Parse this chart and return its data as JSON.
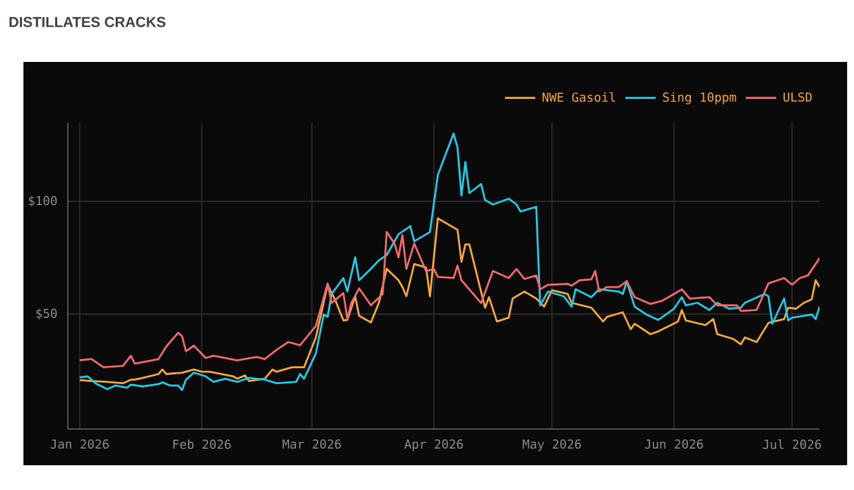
{
  "chart_data": {
    "type": "line",
    "title": "DISTILLATES CRACKS",
    "xlim": [
      "2025-12-29",
      "2026-07-08"
    ],
    "xticks": [
      {
        "value": "2026-01-01",
        "label": "Jan 2026"
      },
      {
        "value": "2026-02-01",
        "label": "Feb 2026"
      },
      {
        "value": "2026-03-01",
        "label": "Mar 2026"
      },
      {
        "value": "2026-04-01",
        "label": "Apr 2026"
      },
      {
        "value": "2026-05-01",
        "label": "May 2026"
      },
      {
        "value": "2026-06-01",
        "label": "Jun 2026"
      },
      {
        "value": "2026-07-01",
        "label": "Jul 2026"
      }
    ],
    "ylim": [
      -1,
      135
    ],
    "yticks": [
      {
        "value": 50,
        "label": "$50"
      },
      {
        "value": 100,
        "label": "$100"
      }
    ],
    "grid": true,
    "legend": "top right",
    "line_style": "solid",
    "series": [
      {
        "name": "NWE Gasoil",
        "color": "#f5a83a",
        "x": [
          "2026-01-01",
          "2026-01-04",
          "2026-01-08",
          "2026-01-12",
          "2026-01-14",
          "2026-01-15",
          "2026-01-17",
          "2026-01-21",
          "2026-01-22",
          "2026-01-23",
          "2026-01-27",
          "2026-01-30",
          "2026-02-01",
          "2026-02-03",
          "2026-02-09",
          "2026-02-10",
          "2026-02-12",
          "2026-02-13",
          "2026-02-17",
          "2026-02-19",
          "2026-02-20",
          "2026-02-24",
          "2026-02-27",
          "2026-03-02",
          "2026-03-05",
          "2026-03-07",
          "2026-03-09",
          "2026-03-10",
          "2026-03-12",
          "2026-03-13",
          "2026-03-16",
          "2026-03-18",
          "2026-03-20",
          "2026-03-23",
          "2026-03-24",
          "2026-03-25",
          "2026-03-27",
          "2026-03-30",
          "2026-03-31",
          "2026-04-02",
          "2026-04-07",
          "2026-04-08",
          "2026-04-09",
          "2026-04-10",
          "2026-04-14",
          "2026-04-15",
          "2026-04-17",
          "2026-04-20",
          "2026-04-21",
          "2026-04-24",
          "2026-04-27",
          "2026-04-29",
          "2026-05-01",
          "2026-05-05",
          "2026-05-06",
          "2026-05-11",
          "2026-05-14",
          "2026-05-15",
          "2026-05-19",
          "2026-05-21",
          "2026-05-22",
          "2026-05-26",
          "2026-05-28",
          "2026-06-02",
          "2026-06-03",
          "2026-06-04",
          "2026-06-09",
          "2026-06-11",
          "2026-06-12",
          "2026-06-16",
          "2026-06-18",
          "2026-06-19",
          "2026-06-22",
          "2026-06-25",
          "2026-06-29",
          "2026-06-30",
          "2026-07-02",
          "2026-07-04",
          "2026-07-06",
          "2026-07-07",
          "2026-07-08"
        ],
        "values": [
          20.7,
          20.3,
          19.9,
          19.3,
          20.9,
          20.9,
          21.7,
          23.4,
          25.4,
          23.4,
          24,
          25.4,
          24.4,
          24.4,
          22.4,
          21.3,
          22.8,
          20.3,
          21.3,
          25.4,
          24.4,
          26.4,
          26.4,
          39.6,
          63,
          55.9,
          47.2,
          47.4,
          57.9,
          49.2,
          46.3,
          54.9,
          70.1,
          65,
          62,
          57.9,
          72.2,
          70.7,
          57.9,
          92.5,
          87.4,
          73.2,
          80.9,
          80.9,
          52.8,
          57.5,
          46.7,
          48.4,
          56.9,
          60,
          56.9,
          53.3,
          60.6,
          58.9,
          55,
          52.8,
          46.7,
          48.8,
          50.8,
          43.3,
          45.7,
          41.1,
          42.3,
          46.7,
          51.8,
          47.2,
          45.1,
          47.8,
          41.1,
          39,
          36.6,
          39.6,
          37.6,
          46.1,
          47.8,
          52.8,
          52.4,
          55,
          56.5,
          65,
          62
        ]
      },
      {
        "name": "Sing 10ppm",
        "color": "#22cbe6",
        "x": [
          "2026-01-01",
          "2026-01-03",
          "2026-01-05",
          "2026-01-08",
          "2026-01-10",
          "2026-01-13",
          "2026-01-14",
          "2026-01-17",
          "2026-01-21",
          "2026-01-22",
          "2026-01-24",
          "2026-01-26",
          "2026-01-27",
          "2026-01-28",
          "2026-01-30",
          "2026-02-02",
          "2026-02-04",
          "2026-02-07",
          "2026-02-10",
          "2026-02-13",
          "2026-02-17",
          "2026-02-20",
          "2026-02-25",
          "2026-02-26",
          "2026-02-27",
          "2026-03-02",
          "2026-03-04",
          "2026-03-05",
          "2026-03-06",
          "2026-03-09",
          "2026-03-10",
          "2026-03-12",
          "2026-03-13",
          "2026-03-16",
          "2026-03-18",
          "2026-03-20",
          "2026-03-23",
          "2026-03-26",
          "2026-03-27",
          "2026-03-31",
          "2026-04-02",
          "2026-04-06",
          "2026-04-07",
          "2026-04-08",
          "2026-04-09",
          "2026-04-10",
          "2026-04-13",
          "2026-04-14",
          "2026-04-16",
          "2026-04-20",
          "2026-04-22",
          "2026-04-23",
          "2026-04-27",
          "2026-04-28",
          "2026-04-30",
          "2026-05-04",
          "2026-05-06",
          "2026-05-07",
          "2026-05-11",
          "2026-05-13",
          "2026-05-18",
          "2026-05-19",
          "2026-05-20",
          "2026-05-22",
          "2026-05-25",
          "2026-05-28",
          "2026-06-01",
          "2026-06-03",
          "2026-06-04",
          "2026-06-07",
          "2026-06-10",
          "2026-06-12",
          "2026-06-15",
          "2026-06-18",
          "2026-06-19",
          "2026-06-24",
          "2026-06-25",
          "2026-06-26",
          "2026-06-29",
          "2026-06-30",
          "2026-07-01",
          "2026-07-06",
          "2026-07-07",
          "2026-07-08"
        ],
        "values": [
          21.9,
          22.4,
          19.3,
          16.7,
          18.3,
          17.3,
          18.7,
          17.9,
          18.9,
          19.7,
          18.3,
          18.3,
          16.3,
          20.9,
          24,
          22.4,
          19.9,
          21.3,
          19.9,
          21.7,
          20.9,
          19.3,
          19.9,
          23.4,
          21.3,
          32.5,
          49.8,
          48.8,
          58.9,
          66,
          60,
          75.2,
          65,
          70.1,
          73.8,
          76.2,
          85.4,
          89,
          82.3,
          86.4,
          111.8,
          130.1,
          124,
          102.6,
          117.5,
          103.7,
          107.7,
          100.6,
          98.6,
          101.2,
          98.6,
          95.5,
          97.6,
          53.9,
          60,
          57.9,
          53.3,
          61,
          57.5,
          61,
          60,
          58.9,
          64.6,
          53.3,
          49.8,
          47.4,
          52.4,
          57.5,
          53.9,
          55,
          51.8,
          55,
          52.4,
          52.8,
          55,
          58.9,
          57.9,
          45.7,
          56.9,
          47.2,
          48.4,
          49.8,
          47.8,
          53.3
        ]
      },
      {
        "name": "ULSD",
        "color": "#f26b6b",
        "x": [
          "2026-01-01",
          "2026-01-04",
          "2026-01-07",
          "2026-01-12",
          "2026-01-14",
          "2026-01-15",
          "2026-01-21",
          "2026-01-23",
          "2026-01-26",
          "2026-01-27",
          "2026-01-28",
          "2026-01-30",
          "2026-02-02",
          "2026-02-04",
          "2026-02-10",
          "2026-02-15",
          "2026-02-17",
          "2026-02-20",
          "2026-02-23",
          "2026-02-26",
          "2026-03-02",
          "2026-03-05",
          "2026-03-06",
          "2026-03-09",
          "2026-03-10",
          "2026-03-11",
          "2026-03-13",
          "2026-03-16",
          "2026-03-19",
          "2026-03-20",
          "2026-03-22",
          "2026-03-23",
          "2026-03-24",
          "2026-03-25",
          "2026-03-27",
          "2026-03-30",
          "2026-04-01",
          "2026-04-02",
          "2026-04-06",
          "2026-04-07",
          "2026-04-08",
          "2026-04-13",
          "2026-04-16",
          "2026-04-20",
          "2026-04-22",
          "2026-04-24",
          "2026-04-27",
          "2026-04-28",
          "2026-04-30",
          "2026-05-05",
          "2026-05-06",
          "2026-05-08",
          "2026-05-11",
          "2026-05-12",
          "2026-05-13",
          "2026-05-15",
          "2026-05-18",
          "2026-05-20",
          "2026-05-22",
          "2026-05-26",
          "2026-05-29",
          "2026-06-01",
          "2026-06-03",
          "2026-06-05",
          "2026-06-10",
          "2026-06-12",
          "2026-06-17",
          "2026-06-18",
          "2026-06-22",
          "2026-06-25",
          "2026-06-29",
          "2026-07-01",
          "2026-07-03",
          "2026-07-05",
          "2026-07-07",
          "2026-07-08"
        ],
        "values": [
          29.5,
          30.1,
          26.4,
          27,
          31.5,
          28,
          30,
          35.6,
          41.7,
          40.2,
          33.5,
          36,
          30.5,
          31.5,
          29.5,
          31,
          30,
          34.1,
          37.6,
          36.2,
          44.7,
          63.6,
          54.9,
          59.3,
          47.8,
          54.9,
          61.4,
          53.9,
          58.9,
          86.4,
          81.3,
          75.2,
          85,
          70,
          81.3,
          69.1,
          70,
          66.5,
          66,
          71.5,
          65,
          54.9,
          69.1,
          66,
          70,
          65.6,
          67.1,
          61,
          63,
          63.4,
          62.6,
          65,
          65.4,
          69.1,
          60,
          62,
          62,
          64.6,
          57.5,
          54.5,
          55.9,
          58.9,
          61,
          56.9,
          57.5,
          53.9,
          53.9,
          51.4,
          51.8,
          63.6,
          66,
          63,
          66,
          67.1,
          72.2,
          74.8
        ]
      }
    ]
  }
}
